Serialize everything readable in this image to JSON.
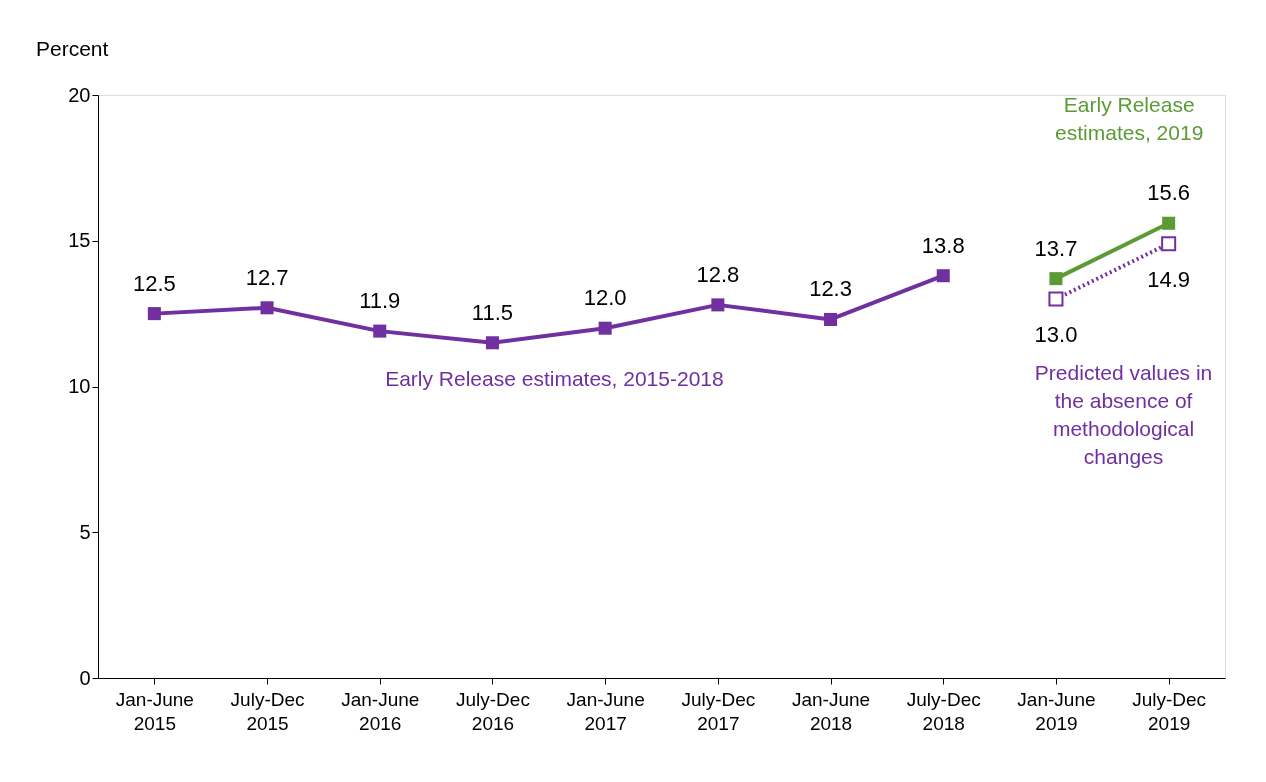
{
  "chart_data": {
    "type": "line",
    "ylabel": "Percent",
    "categories": [
      "Jan-June 2015",
      "July-Dec 2015",
      "Jan-June 2016",
      "July-Dec 2016",
      "Jan-June 2017",
      "July-Dec 2017",
      "Jan-June 2018",
      "July-Dec 2018",
      "Jan-June 2019",
      "July-Dec 2019"
    ],
    "series": [
      {
        "name": "Early Release estimates, 2015-2018",
        "color": "#7030a0",
        "line_style": "solid",
        "values": [
          12.5,
          12.7,
          11.9,
          11.5,
          12.0,
          12.8,
          12.3,
          13.8,
          null,
          null
        ],
        "value_labels": [
          "12.5",
          "12.7",
          "11.9",
          "11.5",
          "12.0",
          "12.8",
          "12.3",
          "13.8",
          null,
          null
        ]
      },
      {
        "name": "Early Release estimates, 2019",
        "color": "#5b9a35",
        "line_style": "solid",
        "values": [
          null,
          null,
          null,
          null,
          null,
          null,
          null,
          null,
          13.7,
          15.6
        ],
        "value_labels": [
          null,
          null,
          null,
          null,
          null,
          null,
          null,
          null,
          "13.7",
          "15.6"
        ]
      },
      {
        "name": "Predicted values in the absence of methodological changes",
        "color": "#7030a0",
        "line_style": "dotted",
        "values": [
          null,
          null,
          null,
          null,
          null,
          null,
          null,
          null,
          13.0,
          14.9
        ],
        "value_labels": [
          null,
          null,
          null,
          null,
          null,
          null,
          null,
          null,
          "13.0",
          "14.9"
        ]
      }
    ],
    "ylim": [
      0,
      20
    ],
    "yticks": [
      0,
      5,
      10,
      15,
      20
    ],
    "grid": false,
    "marker": "square"
  }
}
